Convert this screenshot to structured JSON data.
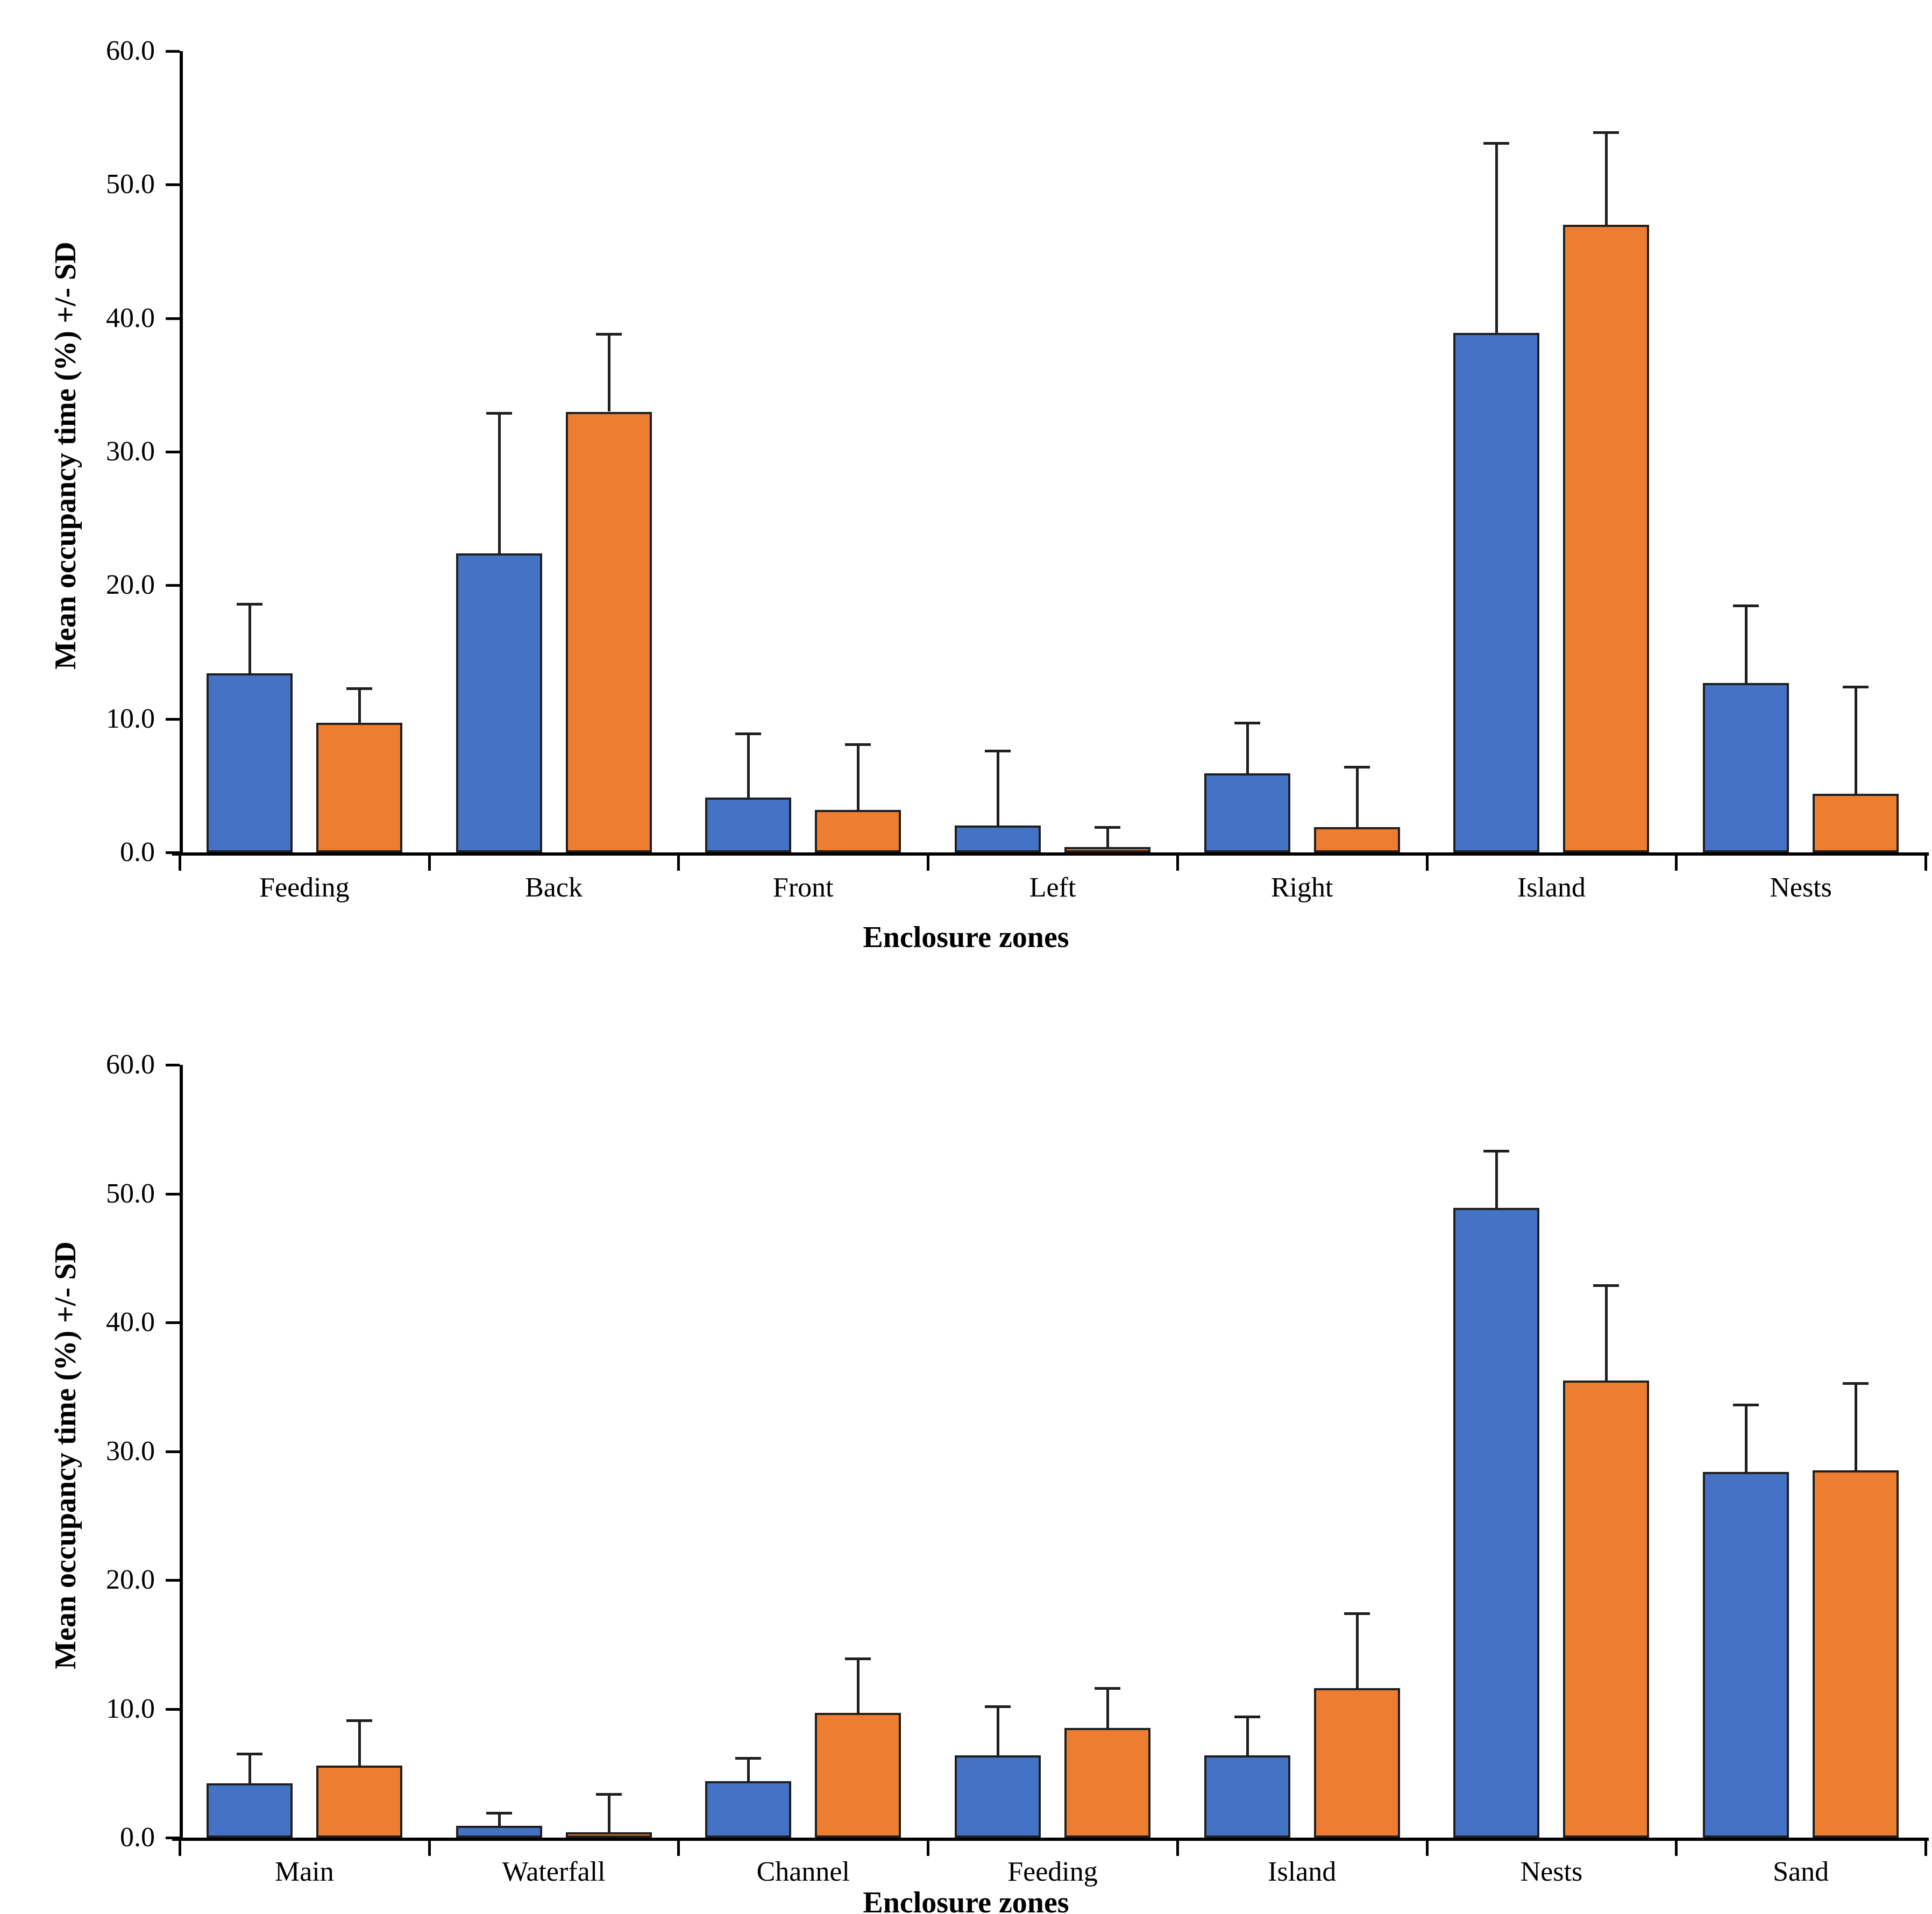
{
  "figure": {
    "background": "#ffffff",
    "axis_color": "#000000",
    "bar_border_color": "#1f1f1f",
    "series_colors": {
      "series1": "#4472C4",
      "series2": "#ED7D31"
    }
  },
  "chart_data": [
    {
      "type": "bar",
      "title": "",
      "xlabel": "Enclosure zones",
      "ylabel": "Mean occupancy time (%) +/- SD",
      "ylim": [
        0,
        60
      ],
      "ytick_step": 10,
      "ytick_labels": [
        "0.0",
        "10.0",
        "20.0",
        "30.0",
        "40.0",
        "50.0",
        "60.0"
      ],
      "grid": false,
      "legend_position": "none",
      "error_bars": "upper SD whisker with cap",
      "categories": [
        "Feeding",
        "Back",
        "Front",
        "Left",
        "Right",
        "Island",
        "Nests"
      ],
      "series": [
        {
          "name": "blue-series",
          "color": "#4472C4",
          "values": [
            13.4,
            22.4,
            4.1,
            2.0,
            5.9,
            38.9,
            12.7
          ],
          "sd": [
            5.2,
            10.5,
            4.8,
            5.6,
            3.8,
            14.2,
            5.8
          ]
        },
        {
          "name": "orange-series",
          "color": "#ED7D31",
          "values": [
            9.7,
            33.0,
            3.2,
            0.4,
            1.9,
            47.0,
            4.4
          ],
          "sd": [
            2.6,
            5.8,
            4.9,
            1.5,
            4.5,
            6.9,
            8.0
          ]
        }
      ]
    },
    {
      "type": "bar",
      "title": "",
      "xlabel": "Enclosure zones",
      "ylabel": "Mean occupancy time (%) +/- SD",
      "ylim": [
        0,
        60
      ],
      "ytick_step": 10,
      "ytick_labels": [
        "0.0",
        "10.0",
        "20.0",
        "30.0",
        "40.0",
        "50.0",
        "60.0"
      ],
      "grid": false,
      "legend_position": "none",
      "error_bars": "upper SD whisker with cap",
      "categories": [
        "Main",
        "Waterfall",
        "Channel",
        "Feeding",
        "Island",
        "Nests",
        "Sand"
      ],
      "series": [
        {
          "name": "blue-series",
          "color": "#4472C4",
          "values": [
            4.2,
            0.9,
            4.4,
            6.4,
            6.4,
            48.9,
            28.4
          ],
          "sd": [
            2.3,
            1.0,
            1.8,
            3.8,
            3.0,
            4.4,
            5.2
          ]
        },
        {
          "name": "orange-series",
          "color": "#ED7D31",
          "values": [
            5.6,
            0.4,
            9.7,
            8.5,
            11.6,
            35.5,
            28.5
          ],
          "sd": [
            3.5,
            3.0,
            4.2,
            3.1,
            5.8,
            7.4,
            6.8
          ]
        }
      ]
    }
  ]
}
